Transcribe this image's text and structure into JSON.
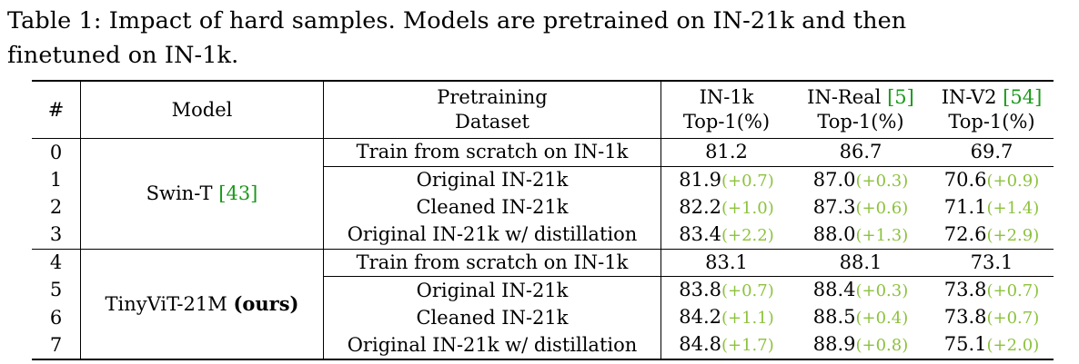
{
  "caption": {
    "line1": "Table 1: Impact of hard samples. Models are pretrained on IN-21k and then",
    "line2": "finetuned on IN-1k."
  },
  "headers": {
    "num": "#",
    "model": "Model",
    "pretrain_1": "Pretraining",
    "pretrain_2": "Dataset",
    "in1k_1": "IN-1k",
    "in1k_2": "Top-1(%)",
    "inreal_1": "IN-Real",
    "inreal_cite": "[5]",
    "inreal_2": "Top-1(%)",
    "inv2_1": "IN-V2",
    "inv2_cite": "[54]",
    "inv2_2": "Top-1(%)"
  },
  "groups": [
    {
      "model": "Swin-T",
      "model_cite": "[43]",
      "model_bold": "",
      "rows": [
        {
          "num": "0",
          "dataset": "Train from scratch on IN-1k",
          "in1k": "81.2",
          "in1k_d": "",
          "inreal": "86.7",
          "inreal_d": "",
          "inv2": "69.7",
          "inv2_d": ""
        },
        {
          "num": "1",
          "dataset": "Original IN-21k",
          "in1k": "81.9",
          "in1k_d": "(+0.7)",
          "inreal": "87.0",
          "inreal_d": "(+0.3)",
          "inv2": "70.6",
          "inv2_d": "(+0.9)"
        },
        {
          "num": "2",
          "dataset": "Cleaned IN-21k",
          "in1k": "82.2",
          "in1k_d": "(+1.0)",
          "inreal": "87.3",
          "inreal_d": "(+0.6)",
          "inv2": "71.1",
          "inv2_d": "(+1.4)"
        },
        {
          "num": "3",
          "dataset": "Original IN-21k w/ distillation",
          "in1k": "83.4",
          "in1k_d": "(+2.2)",
          "inreal": "88.0",
          "inreal_d": "(+1.3)",
          "inv2": "72.6",
          "inv2_d": "(+2.9)"
        }
      ]
    },
    {
      "model": "TinyViT-21M",
      "model_cite": "",
      "model_bold": "(ours)",
      "rows": [
        {
          "num": "4",
          "dataset": "Train from scratch on IN-1k",
          "in1k": "83.1",
          "in1k_d": "",
          "inreal": "88.1",
          "inreal_d": "",
          "inv2": "73.1",
          "inv2_d": ""
        },
        {
          "num": "5",
          "dataset": "Original IN-21k",
          "in1k": "83.8",
          "in1k_d": "(+0.7)",
          "inreal": "88.4",
          "inreal_d": "(+0.3)",
          "inv2": "73.8",
          "inv2_d": "(+0.7)"
        },
        {
          "num": "6",
          "dataset": "Cleaned IN-21k",
          "in1k": "84.2",
          "in1k_d": "(+1.1)",
          "inreal": "88.5",
          "inreal_d": "(+0.4)",
          "inv2": "73.8",
          "inv2_d": "(+0.7)"
        },
        {
          "num": "7",
          "dataset": "Original IN-21k w/ distillation",
          "in1k": "84.8",
          "in1k_d": "(+1.7)",
          "inreal": "88.9",
          "inreal_d": "(+0.8)",
          "inv2": "75.1",
          "inv2_d": "(+2.0)"
        }
      ]
    }
  ],
  "colors": {
    "delta": "#8dc23e",
    "cite": "#1a9a1a"
  }
}
